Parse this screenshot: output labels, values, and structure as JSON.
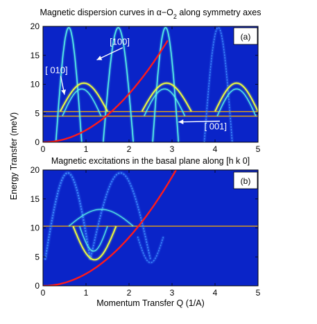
{
  "figure": {
    "title_main": "Magnetic dispersion curves in α−O",
    "title_sub": "2",
    "title_tail": " along symmetry axes",
    "ylabel": "Energy Transfer (meV)",
    "xlabel": "Momentum Transfer Q (1/A)"
  },
  "colors": {
    "background": "#0a24c8",
    "parabola": "#ff1a1a",
    "flat_band": "#d89a1e",
    "branch_cyan": "#58f2e6",
    "branch_yellow": "#f0ff3c",
    "branch_dim": "#3c8cff"
  },
  "chart_data": [
    {
      "type": "heatmap",
      "panel_label": "(a)",
      "title": "",
      "xlim": [
        0,
        5
      ],
      "ylim": [
        0,
        20
      ],
      "xticks": [
        0,
        1,
        2,
        3,
        4,
        5
      ],
      "yticks": [
        0,
        5,
        10,
        15,
        20
      ],
      "annotations": [
        {
          "text": "[100]",
          "x": 1.55,
          "y": 16.8,
          "arrow_to": [
            1.25,
            14.2
          ]
        },
        {
          "text": "[ 010]",
          "x": 0.05,
          "y": 11.9,
          "arrow_to": [
            0.5,
            8.2
          ]
        },
        {
          "text": "[ 001]",
          "x": 3.75,
          "y": 2.2,
          "arrow_to": [
            3.15,
            3.5
          ]
        }
      ],
      "flat_bands": [
        4.5,
        5.3
      ],
      "recoil_parabola": {
        "coefficient": 2.09,
        "x_range": [
          0,
          2.9
        ]
      },
      "branches": [
        {
          "kind": "dome",
          "x_from": 0.3,
          "x_to": 0.9,
          "min": 0,
          "max": 19.8,
          "color": "branch_cyan",
          "width": 2.2
        },
        {
          "kind": "dome",
          "x_from": 1.4,
          "x_to": 2.1,
          "min": 0,
          "max": 19.8,
          "color": "branch_cyan",
          "width": 2.2
        },
        {
          "kind": "dome",
          "x_from": 2.55,
          "x_to": 3.15,
          "min": 0,
          "max": 19.8,
          "color": "branch_cyan",
          "width": 2.2
        },
        {
          "kind": "dome",
          "x_from": 3.75,
          "x_to": 4.4,
          "min": 0,
          "max": 19.8,
          "color": "branch_dim",
          "width": 2
        },
        {
          "kind": "dome",
          "x_from": 0.4,
          "x_to": 1.5,
          "min": 5.3,
          "max": 10.2,
          "color": "branch_yellow",
          "width": 2.6
        },
        {
          "kind": "dome",
          "x_from": 2.3,
          "x_to": 3.45,
          "min": 5.3,
          "max": 10.2,
          "color": "branch_yellow",
          "width": 2.6
        },
        {
          "kind": "dome",
          "x_from": 4.0,
          "x_to": 5.0,
          "min": 5.3,
          "max": 10.2,
          "color": "branch_yellow",
          "width": 2.6
        },
        {
          "kind": "dome",
          "x_from": 0.45,
          "x_to": 1.35,
          "min": 4.5,
          "max": 9.2,
          "color": "branch_cyan",
          "width": 1.8
        },
        {
          "kind": "dome",
          "x_from": 2.35,
          "x_to": 3.3,
          "min": 4.5,
          "max": 9.2,
          "color": "branch_cyan",
          "width": 1.8
        },
        {
          "kind": "dome",
          "x_from": 4.05,
          "x_to": 4.95,
          "min": 4.5,
          "max": 9.2,
          "color": "branch_cyan",
          "width": 1.8
        }
      ]
    },
    {
      "type": "heatmap",
      "panel_label": "(b)",
      "title": "Magnetic excitations in the basal plane along [h k 0]",
      "xlim": [
        0,
        5
      ],
      "ylim": [
        0,
        20
      ],
      "xticks": [
        0,
        1,
        2,
        3,
        4,
        5
      ],
      "yticks": [
        0,
        5,
        10,
        15,
        20
      ],
      "flat_bands": [
        10.3
      ],
      "recoil_parabola": {
        "coefficient": 2.09,
        "x_range": [
          0,
          3.1
        ]
      },
      "branches": [
        {
          "kind": "dome",
          "x_from": 0.05,
          "x_to": 1.1,
          "min": 4.5,
          "max": 19.5,
          "color": "branch_dim",
          "width": 3
        },
        {
          "kind": "dome",
          "x_from": 1.1,
          "x_to": 2.5,
          "min": 4.5,
          "max": 19.5,
          "color": "branch_dim",
          "width": 2.5
        },
        {
          "kind": "valley",
          "x_from": 0.7,
          "x_to": 1.7,
          "min": 4.5,
          "max": 10.3,
          "color": "branch_yellow",
          "width": 2.6
        },
        {
          "kind": "valley",
          "x_from": 0.85,
          "x_to": 1.5,
          "min": 6.0,
          "max": 10.3,
          "color": "branch_cyan",
          "width": 1.6
        },
        {
          "kind": "dome",
          "x_from": 0.6,
          "x_to": 2.1,
          "min": 10.3,
          "max": 13.2,
          "color": "branch_cyan",
          "width": 1.6
        },
        {
          "kind": "valley",
          "x_from": 2.2,
          "x_to": 2.8,
          "min": 4.0,
          "max": 8.5,
          "color": "branch_dim",
          "width": 2
        }
      ]
    }
  ]
}
